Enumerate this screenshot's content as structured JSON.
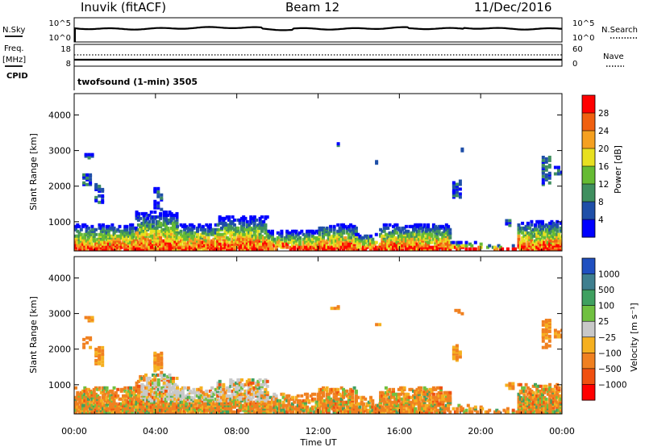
{
  "header": {
    "site": "Inuvik (fitACF)",
    "beam": "Beam 12",
    "date": "11/Dec/2016"
  },
  "panels": {
    "nsky": {
      "label": "N.Sky",
      "ticks": [
        "10^5",
        "10^0"
      ],
      "right_ticks": [
        "10^5",
        "10^0"
      ],
      "right_label": "N.Search"
    },
    "freq": {
      "label": "Freq.",
      "unit": "[MHz]",
      "ticks": [
        "18",
        "8"
      ],
      "right_ticks": [
        "60",
        "0"
      ],
      "right_label": "Nave"
    },
    "cpid": {
      "label": "CPID",
      "program": "twofsound (1-min) 3505"
    }
  },
  "chart_data": [
    {
      "type": "heatmap",
      "name": "power",
      "ylabel": "Slant Range [km]",
      "y_ticks": [
        1000,
        2000,
        3000,
        4000
      ],
      "ylim": [
        180,
        4600
      ],
      "x_ticks": [
        "00:00",
        "04:00",
        "08:00",
        "12:00",
        "16:00",
        "20:00",
        "00:00"
      ],
      "xlim": [
        0,
        24
      ],
      "colorbar": {
        "label": "Power [dB]",
        "ticks": [
          "4",
          "8",
          "12",
          "16",
          "20",
          "24",
          "28"
        ],
        "colors": [
          "#0000ff",
          "#1f4fa8",
          "#3f8f5f",
          "#66bb33",
          "#e8e020",
          "#f5a020",
          "#f06010",
          "#ff0000"
        ]
      }
    },
    {
      "type": "heatmap",
      "name": "velocity",
      "ylabel": "Slant Range [km]",
      "y_ticks": [
        1000,
        2000,
        3000,
        4000
      ],
      "ylim": [
        180,
        4600
      ],
      "x_ticks": [
        "00:00",
        "04:00",
        "08:00",
        "12:00",
        "16:00",
        "20:00",
        "00:00"
      ],
      "xlim": [
        0,
        24
      ],
      "xlabel": "Time UT",
      "colorbar": {
        "label": "Velocity [m s⁻¹]",
        "ticks": [
          "1000",
          "500",
          "100",
          "25",
          "−25",
          "−100",
          "−500",
          "−1000"
        ],
        "colors": [
          "#2050c0",
          "#3f7f8f",
          "#3fa060",
          "#70c040",
          "#c8c8c8",
          "#f5b020",
          "#f08020",
          "#f05010",
          "#ff0000"
        ]
      }
    }
  ]
}
